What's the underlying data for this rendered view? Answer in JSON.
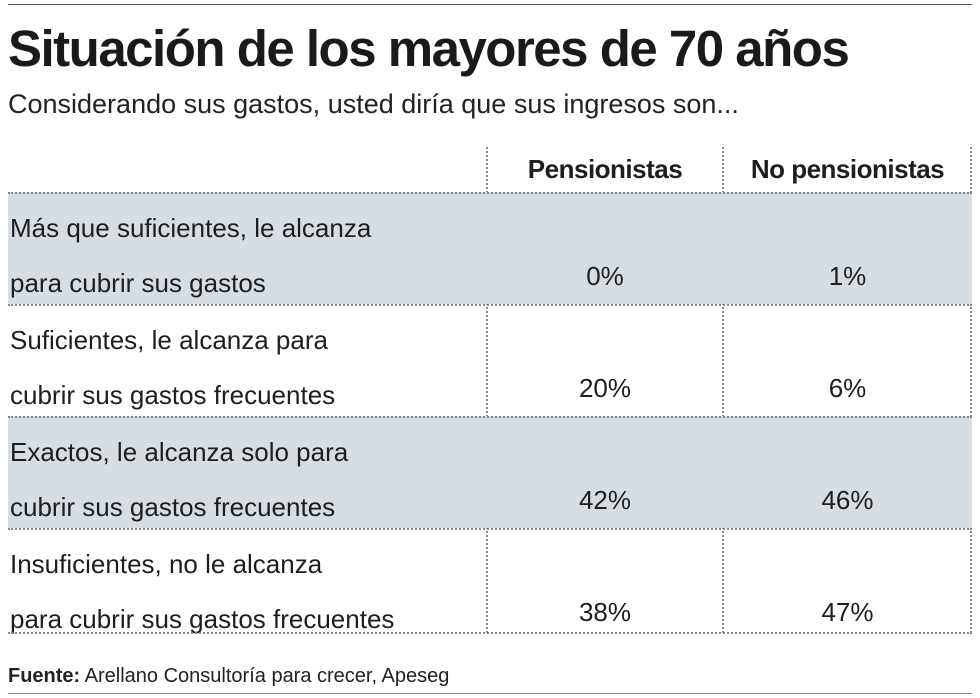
{
  "title": "Situación de los mayores de 70 años",
  "subtitle": "Considerando sus gastos, usted diría que sus ingresos son...",
  "chart_data": {
    "type": "table",
    "title": "Situación de los mayores de 70 años",
    "subtitle": "Considerando sus gastos, usted diría que sus ingresos son...",
    "columns": [
      "Pensionistas",
      "No pensionistas"
    ],
    "rows": [
      {
        "label_line1": "Más que suficientes, le alcanza",
        "label_line2": "para cubrir sus gastos",
        "values": [
          "0%",
          "1%"
        ]
      },
      {
        "label_line1": "Suficientes, le alcanza para",
        "label_line2": "cubrir sus gastos frecuentes",
        "values": [
          "20%",
          "6%"
        ]
      },
      {
        "label_line1": "Exactos, le alcanza solo para",
        "label_line2": "cubrir sus gastos frecuentes",
        "values": [
          "42%",
          "46%"
        ]
      },
      {
        "label_line1": "Insuficientes, no le alcanza",
        "label_line2": "para cubrir sus gastos frecuentes",
        "values": [
          "38%",
          "47%"
        ]
      }
    ],
    "series": [
      {
        "name": "Pensionistas",
        "values": [
          0,
          20,
          42,
          38
        ]
      },
      {
        "name": "No pensionistas",
        "values": [
          1,
          6,
          46,
          47
        ]
      }
    ],
    "row_shading_color": "#d6dde3"
  },
  "footer": {
    "source_label": "Fuente:",
    "source_text": "Arellano Consultoría para crecer, Apeseg"
  }
}
